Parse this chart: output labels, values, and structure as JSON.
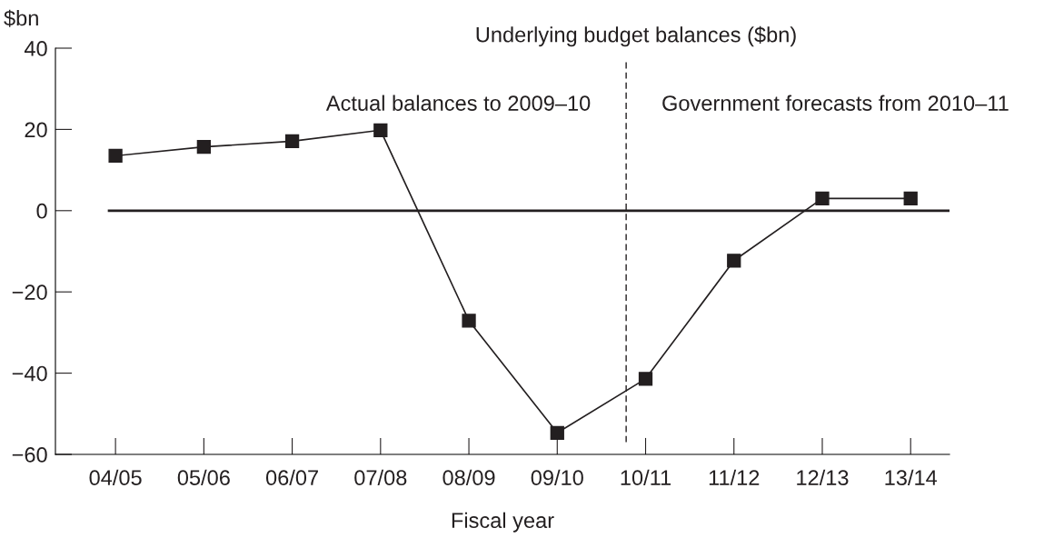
{
  "chart_data": {
    "type": "line",
    "title": "Underlying budget balances ($bn)",
    "xlabel": "Fiscal year",
    "ylabel": "$bn",
    "categories": [
      "04/05",
      "05/06",
      "06/07",
      "07/08",
      "08/09",
      "09/10",
      "10/11",
      "11/12",
      "12/13",
      "13/14"
    ],
    "series": [
      {
        "color": "#231f20",
        "values": [
          13.5,
          15.7,
          17.1,
          19.8,
          -27.1,
          -54.7,
          -41.4,
          -12.3,
          3.0,
          3.0
        ]
      }
    ],
    "ylim": [
      -60,
      40
    ],
    "yticks": [
      {
        "value": -60,
        "label": "−60"
      },
      {
        "value": -40,
        "label": "−40"
      },
      {
        "value": -20,
        "label": "−20"
      },
      0,
      20,
      40
    ],
    "ref_lines": [
      {
        "axis": "y",
        "value": 0,
        "color": "#231f20",
        "line_style": "solid"
      },
      {
        "axis": "x",
        "value": "10/11",
        "color": "#231f20",
        "line_style": "dashed"
      }
    ],
    "annotations": [
      "Actual balances to 2009–10",
      "Government forecasts from 2010–11"
    ],
    "marker": "square",
    "line_style": "solid",
    "grid": false,
    "legend": false
  }
}
